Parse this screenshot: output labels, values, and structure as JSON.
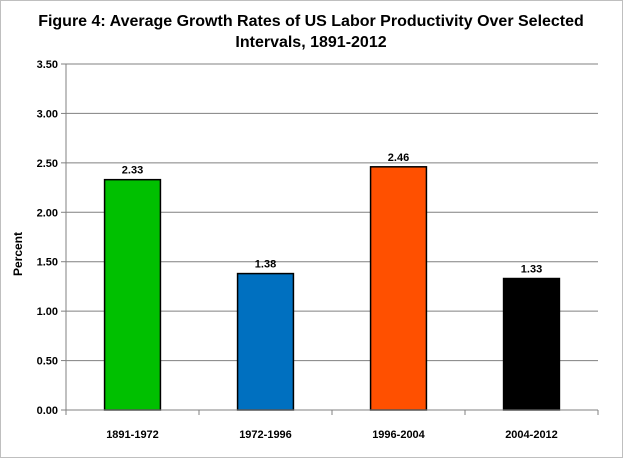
{
  "chart_data": {
    "type": "bar",
    "title_lines": [
      "Figure 4: Average Growth Rates of US Labor Productivity Over Selected",
      "Intervals, 1891-2012"
    ],
    "ylabel": "Percent",
    "xlabel": "",
    "categories": [
      "1891-1972",
      "1972-1996",
      "1996-2004",
      "2004-2012"
    ],
    "values": [
      2.33,
      1.38,
      2.46,
      1.33
    ],
    "value_labels": [
      "2.33",
      "1.38",
      "2.46",
      "1.33"
    ],
    "colors": [
      "#00c000",
      "#0070c0",
      "#ff5000",
      "#000000"
    ],
    "ylim": [
      0,
      3.5
    ],
    "yticks": [
      0,
      0.5,
      1.0,
      1.5,
      2.0,
      2.5,
      3.0,
      3.5
    ],
    "ytick_labels": [
      "0.00",
      "0.50",
      "1.00",
      "1.50",
      "2.00",
      "2.50",
      "3.00",
      "3.50"
    ],
    "grid": true,
    "legend": "none"
  }
}
